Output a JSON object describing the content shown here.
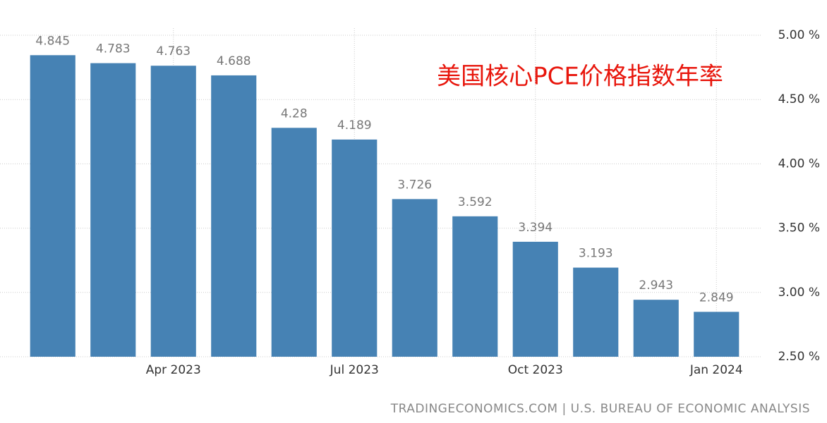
{
  "chart_data": {
    "type": "bar",
    "title": "美国核心PCE价格指数年率",
    "source": "TRADINGECONOMICS.COM | U.S. BUREAU OF ECONOMIC ANALYSIS",
    "categories": [
      null,
      null,
      "Apr 2023",
      null,
      null,
      "Jul 2023",
      null,
      null,
      "Oct 2023",
      null,
      null,
      "Jan 2024"
    ],
    "values": [
      4.845,
      4.783,
      4.763,
      4.688,
      4.28,
      4.189,
      3.726,
      3.592,
      3.394,
      3.193,
      2.943,
      2.849
    ],
    "color": "#4682b4",
    "ylim": [
      2.5,
      5.0
    ],
    "yticks": [
      {
        "value": 2.5,
        "label": "2.50 %"
      },
      {
        "value": 3.0,
        "label": "3.00 %"
      },
      {
        "value": 3.5,
        "label": "3.50 %"
      },
      {
        "value": 4.0,
        "label": "4.00 %"
      },
      {
        "value": 4.5,
        "label": "4.50 %"
      },
      {
        "value": 5.0,
        "label": "5.00 %"
      }
    ],
    "grid": true
  }
}
